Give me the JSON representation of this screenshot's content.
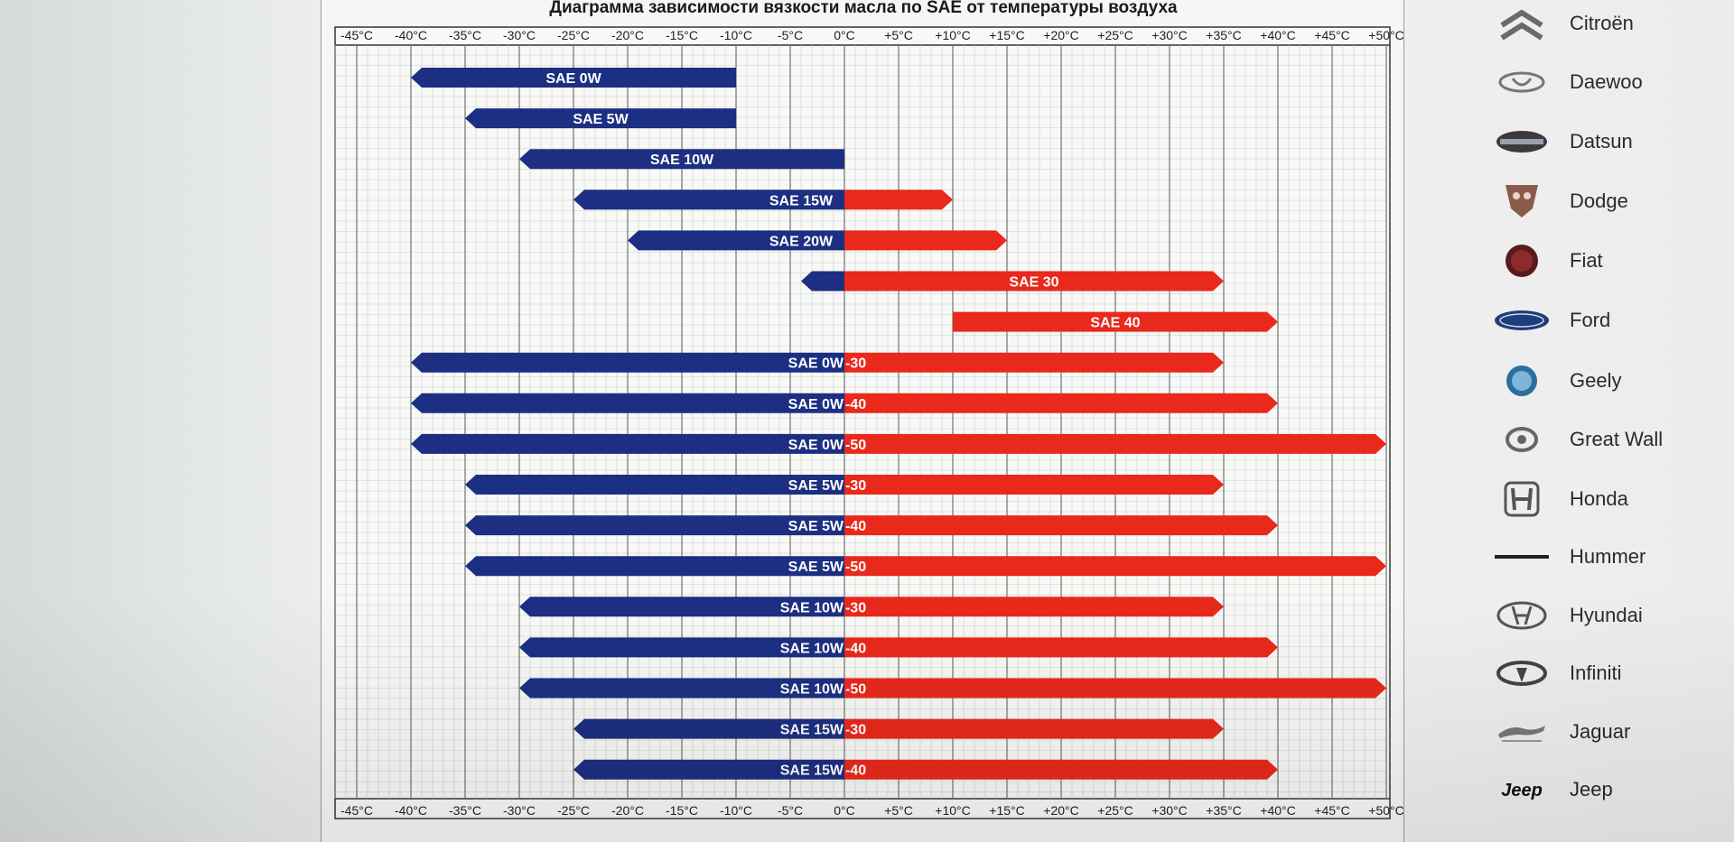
{
  "chart_data": {
    "type": "bar",
    "title": "Диаграмма зависимости вязкости масла по SAE от температуры воздуха",
    "x_ticks": [
      "-45°C",
      "-40°C",
      "-35°C",
      "-30°C",
      "-25°C",
      "-20°C",
      "-15°C",
      "-10°C",
      "-5°C",
      "0°C",
      "+5°C",
      "+10°C",
      "+15°C",
      "+20°C",
      "+25°C",
      "+30°C",
      "+35°C",
      "+40°C",
      "+45°C",
      "+50°C"
    ],
    "xlim": [
      -47,
      51
    ],
    "grid": true,
    "colors": {
      "winter": "#1d2f82",
      "summer": "#e8291c"
    },
    "series": [
      {
        "label": "SAE 0W",
        "from": -40,
        "to": -10
      },
      {
        "label": "SAE 5W",
        "from": -35,
        "to": -10
      },
      {
        "label": "SAE 10W",
        "from": -30,
        "to": 0
      },
      {
        "label": "SAE 15W",
        "from": -25,
        "to": 10
      },
      {
        "label": "SAE 20W",
        "from": -20,
        "to": 15
      },
      {
        "label": "SAE 30",
        "from": -4,
        "to": 35
      },
      {
        "label": "SAE 40",
        "from": 10,
        "to": 40
      },
      {
        "label": "SAE 0W -30",
        "from": -40,
        "to": 35
      },
      {
        "label": "SAE 0W -40",
        "from": -40,
        "to": 40
      },
      {
        "label": "SAE 0W -50",
        "from": -40,
        "to": 50
      },
      {
        "label": "SAE 5W -30",
        "from": -35,
        "to": 35
      },
      {
        "label": "SAE 5W -40",
        "from": -35,
        "to": 40
      },
      {
        "label": "SAE 5W -50",
        "from": -35,
        "to": 50
      },
      {
        "label": "SAE 10W -30",
        "from": -30,
        "to": 35
      },
      {
        "label": "SAE 10W -40",
        "from": -30,
        "to": 40
      },
      {
        "label": "SAE 10W -50",
        "from": -30,
        "to": 50
      },
      {
        "label": "SAE 15W -30",
        "from": -25,
        "to": 35
      },
      {
        "label": "SAE 15W -40",
        "from": -25,
        "to": 40
      }
    ]
  },
  "sidebar": {
    "items": [
      {
        "name": "Citroën",
        "icon": "citroen-logo-icon"
      },
      {
        "name": "Daewoo",
        "icon": "daewoo-logo-icon"
      },
      {
        "name": "Datsun",
        "icon": "datsun-logo-icon"
      },
      {
        "name": "Dodge",
        "icon": "dodge-logo-icon"
      },
      {
        "name": "Fiat",
        "icon": "fiat-logo-icon"
      },
      {
        "name": "Ford",
        "icon": "ford-logo-icon"
      },
      {
        "name": "Geely",
        "icon": "geely-logo-icon"
      },
      {
        "name": "Great Wall",
        "icon": "great-wall-logo-icon"
      },
      {
        "name": "Honda",
        "icon": "honda-logo-icon"
      },
      {
        "name": "Hummer",
        "icon": "hummer-logo-icon"
      },
      {
        "name": "Hyundai",
        "icon": "hyundai-logo-icon"
      },
      {
        "name": "Infiniti",
        "icon": "infiniti-logo-icon"
      },
      {
        "name": "Jaguar",
        "icon": "jaguar-logo-icon"
      },
      {
        "name": "Jeep",
        "icon": "jeep-logo-icon",
        "logo_text": "Jeep"
      }
    ]
  }
}
